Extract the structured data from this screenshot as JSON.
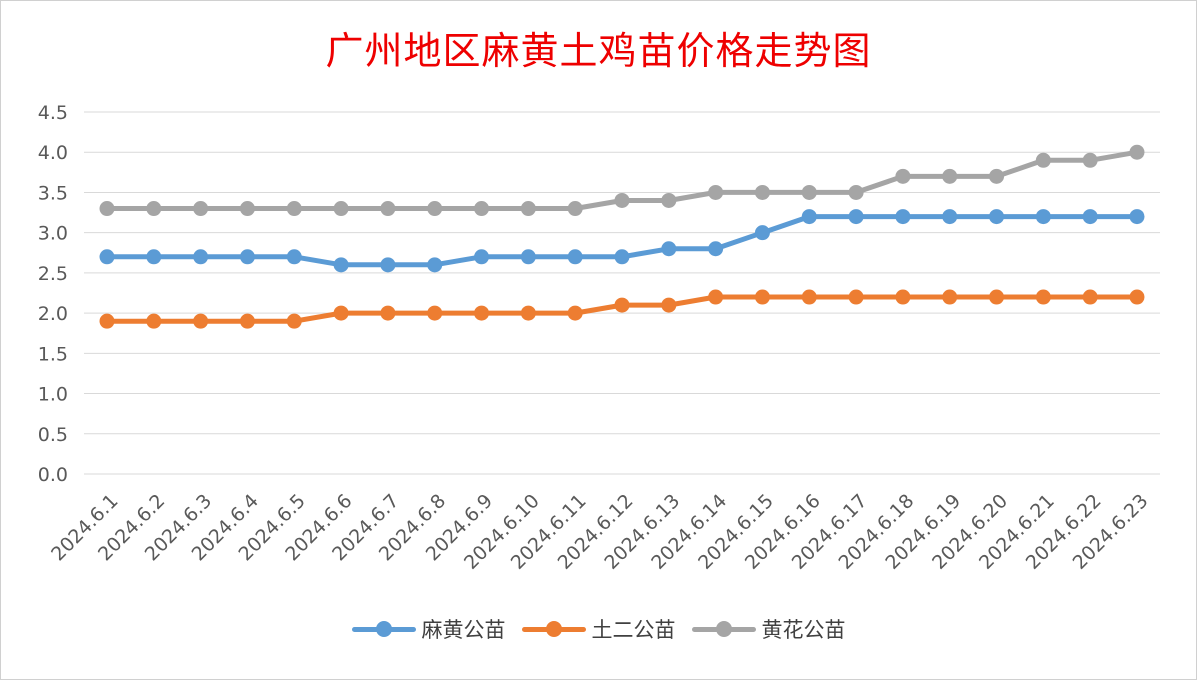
{
  "title": "广州地区麻黄土鸡苗价格走势图",
  "chart_data": {
    "type": "line",
    "title": "广州地区麻黄土鸡苗价格走势图",
    "xlabel": "",
    "ylabel": "",
    "ylim": [
      0,
      4.5
    ],
    "yticks": [
      "0.0",
      "0.5",
      "1.0",
      "1.5",
      "2.0",
      "2.5",
      "3.0",
      "3.5",
      "4.0",
      "4.5"
    ],
    "grid": "horizontal",
    "legend_position": "bottom",
    "categories": [
      "2024.6.1",
      "2024.6.2",
      "2024.6.3",
      "2024.6.4",
      "2024.6.5",
      "2024.6.6",
      "2024.6.7",
      "2024.6.8",
      "2024.6.9",
      "2024.6.10",
      "2024.6.11",
      "2024.6.12",
      "2024.6.13",
      "2024.6.14",
      "2024.6.15",
      "2024.6.16",
      "2024.6.17",
      "2024.6.18",
      "2024.6.19",
      "2024.6.20",
      "2024.6.21",
      "2024.6.22",
      "2024.6.23"
    ],
    "series": [
      {
        "name": "麻黄公苗",
        "color": "#5b9bd5",
        "values": [
          2.7,
          2.7,
          2.7,
          2.7,
          2.7,
          2.6,
          2.6,
          2.6,
          2.7,
          2.7,
          2.7,
          2.7,
          2.8,
          2.8,
          3.0,
          3.2,
          3.2,
          3.2,
          3.2,
          3.2,
          3.2,
          3.2,
          3.2
        ]
      },
      {
        "name": "土二公苗",
        "color": "#ed7d31",
        "values": [
          1.9,
          1.9,
          1.9,
          1.9,
          1.9,
          2.0,
          2.0,
          2.0,
          2.0,
          2.0,
          2.0,
          2.1,
          2.1,
          2.2,
          2.2,
          2.2,
          2.2,
          2.2,
          2.2,
          2.2,
          2.2,
          2.2,
          2.2
        ]
      },
      {
        "name": "黄花公苗",
        "color": "#a5a5a5",
        "values": [
          3.3,
          3.3,
          3.3,
          3.3,
          3.3,
          3.3,
          3.3,
          3.3,
          3.3,
          3.3,
          3.3,
          3.4,
          3.4,
          3.5,
          3.5,
          3.5,
          3.5,
          3.7,
          3.7,
          3.7,
          3.9,
          3.9,
          4.0
        ]
      }
    ]
  }
}
